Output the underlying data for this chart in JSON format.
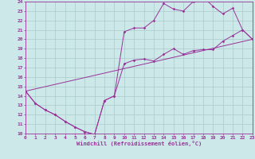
{
  "xlabel": "Windchill (Refroidissement éolien,°C)",
  "bg_color": "#cce8e8",
  "line_color": "#993399",
  "grid_color": "#aacccc",
  "xlim": [
    0,
    23
  ],
  "ylim": [
    10,
    24
  ],
  "xticks": [
    0,
    1,
    2,
    3,
    4,
    5,
    6,
    7,
    8,
    9,
    10,
    11,
    12,
    13,
    14,
    15,
    16,
    17,
    18,
    19,
    20,
    21,
    22,
    23
  ],
  "yticks": [
    10,
    11,
    12,
    13,
    14,
    15,
    16,
    17,
    18,
    19,
    20,
    21,
    22,
    23,
    24
  ],
  "line1_x": [
    0,
    1,
    2,
    3,
    4,
    5,
    6,
    7,
    8,
    9,
    10,
    11,
    12,
    13,
    14,
    15,
    16,
    17,
    18,
    19,
    20,
    21,
    22,
    23
  ],
  "line1_y": [
    14.5,
    13.2,
    12.5,
    12.0,
    11.3,
    10.7,
    10.2,
    9.9,
    13.5,
    14.0,
    17.4,
    17.8,
    17.9,
    17.7,
    18.4,
    19.0,
    18.4,
    18.8,
    18.9,
    18.9,
    19.8,
    20.4,
    21.0,
    20.0
  ],
  "line2_x": [
    0,
    1,
    2,
    3,
    4,
    5,
    6,
    7,
    8,
    9,
    10,
    11,
    12,
    13,
    14,
    15,
    16,
    17,
    18,
    19,
    20,
    21,
    22,
    23
  ],
  "line2_y": [
    14.5,
    13.2,
    12.5,
    12.0,
    11.3,
    10.7,
    10.2,
    9.9,
    13.5,
    14.0,
    20.8,
    21.2,
    21.2,
    22.0,
    23.8,
    23.2,
    23.0,
    24.0,
    24.5,
    23.5,
    22.7,
    23.3,
    21.0,
    20.0
  ],
  "line3_x": [
    0,
    23
  ],
  "line3_y": [
    14.5,
    20.0
  ]
}
